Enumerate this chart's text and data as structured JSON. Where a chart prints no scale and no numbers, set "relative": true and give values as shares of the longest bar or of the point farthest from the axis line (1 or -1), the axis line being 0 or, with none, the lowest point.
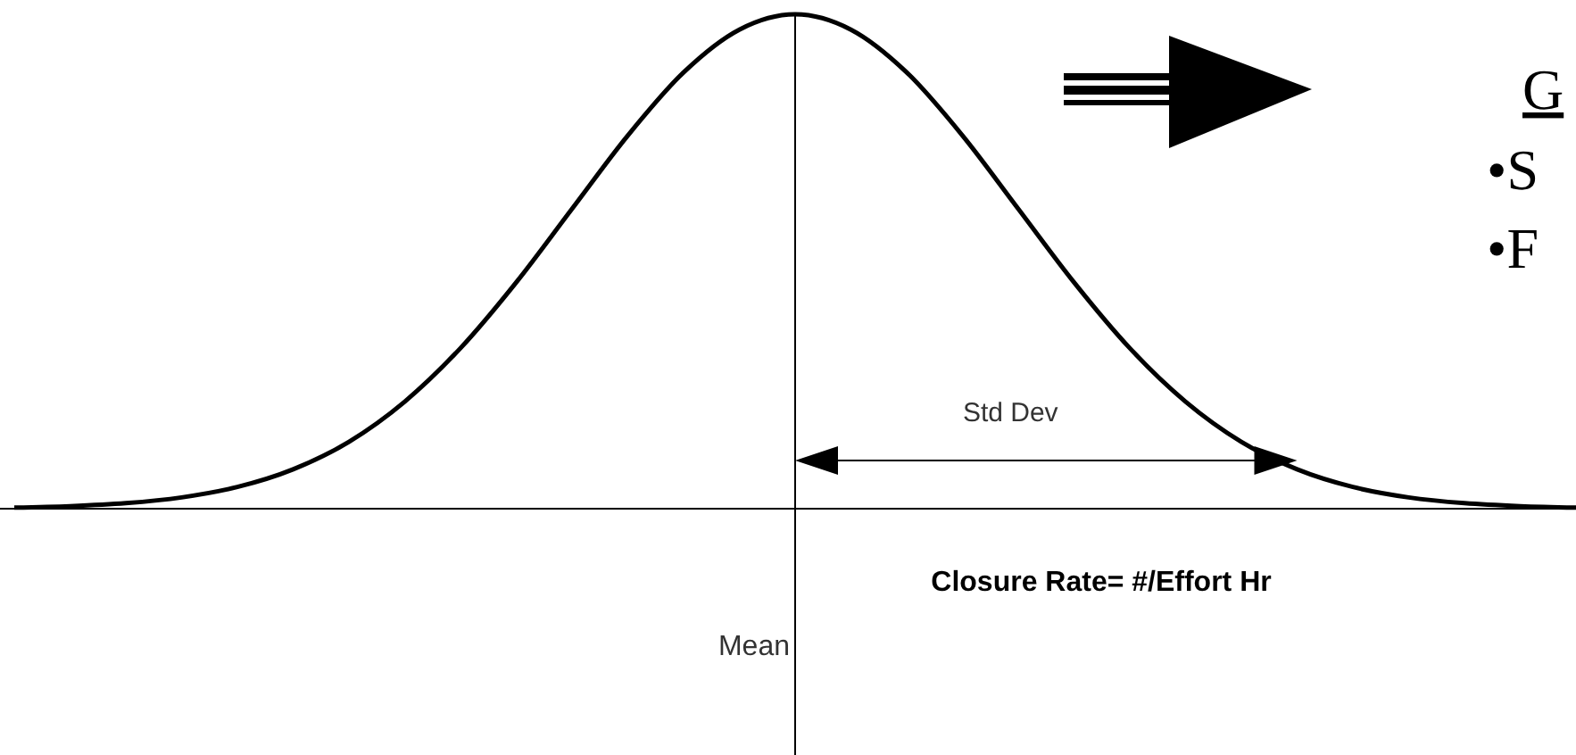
{
  "chart_data": {
    "type": "line",
    "relative": true,
    "xlabel": "Closure Rate= #/Effort Hr",
    "categories": [
      null,
      null,
      null,
      null,
      null,
      null,
      null,
      null,
      null,
      null,
      null,
      null,
      null,
      null,
      null,
      null,
      null,
      null,
      null,
      null,
      null,
      null,
      null,
      null,
      null,
      null,
      null,
      null,
      null
    ],
    "series": [
      {
        "color": "#000000",
        "values": [
          0.0022,
          0.0051,
          0.0111,
          0.0228,
          0.0439,
          0.0796,
          0.1353,
          0.2165,
          0.3247,
          0.4578,
          0.6065,
          0.7548,
          0.8825,
          0.969,
          1,
          0.969,
          0.8825,
          0.7548,
          0.6065,
          0.4578,
          0.3247,
          0.2165,
          0.1353,
          0.0796,
          0.0439,
          0.0228,
          0.0111,
          0.0051,
          0.0022
        ]
      }
    ],
    "annotations": [
      "Std Dev",
      "G",
      "•S",
      "•F",
      "Mean"
    ],
    "marker": "none",
    "line_style": "solid",
    "grid": false
  }
}
